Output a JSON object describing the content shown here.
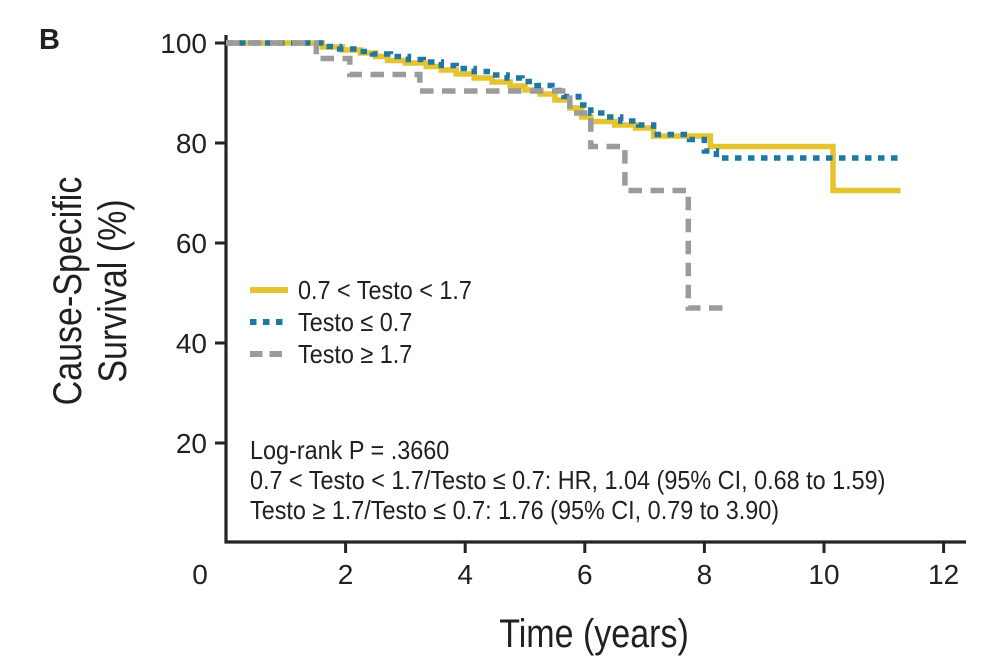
{
  "panel_label": "B",
  "colors": {
    "yellow": "#E6C42F",
    "blue": "#1F78A4",
    "gray": "#9B9B9B",
    "axis": "#262324",
    "text": "#231F20",
    "background": "#FFFFFF"
  },
  "chart_data": {
    "type": "line",
    "subtype": "kaplan-meier-step",
    "title": "",
    "xlabel": "Time (years)",
    "ylabel_lines": [
      "Cause-Specific",
      "Survival (%)"
    ],
    "xlim": [
      0,
      12.4
    ],
    "ylim": [
      0,
      101.6
    ],
    "grid": false,
    "legend_position": "inside-upper-left",
    "xticks": [
      {
        "v": 0,
        "label": "0",
        "tick": false,
        "dx": -26
      },
      {
        "v": 2,
        "label": "2",
        "tick": true,
        "dx": 0
      },
      {
        "v": 4,
        "label": "4",
        "tick": true,
        "dx": 0
      },
      {
        "v": 6,
        "label": "6",
        "tick": true,
        "dx": 0
      },
      {
        "v": 8,
        "label": "8",
        "tick": true,
        "dx": 0
      },
      {
        "v": 10,
        "label": "10",
        "tick": true,
        "dx": 0
      },
      {
        "v": 12,
        "label": "12",
        "tick": true,
        "dx": 0
      }
    ],
    "yticks": [
      20,
      40,
      60,
      80,
      100
    ],
    "series": [
      {
        "id": "testo-mid",
        "name": "0.7 < Testo < 1.7",
        "color_key": "yellow",
        "dash": "solid",
        "points": [
          [
            0,
            100
          ],
          [
            1.61,
            99.2
          ],
          [
            1.95,
            98.6
          ],
          [
            2.25,
            98.0
          ],
          [
            2.5,
            97.3
          ],
          [
            2.7,
            96.5
          ],
          [
            3.0,
            96.0
          ],
          [
            3.35,
            95.3
          ],
          [
            3.6,
            94.6
          ],
          [
            3.85,
            93.8
          ],
          [
            4.15,
            93.0
          ],
          [
            4.45,
            92.2
          ],
          [
            4.75,
            91.4
          ],
          [
            5.0,
            90.6
          ],
          [
            5.25,
            89.8
          ],
          [
            5.5,
            88.6
          ],
          [
            5.75,
            87.0
          ],
          [
            5.95,
            85.2
          ],
          [
            6.1,
            84.3
          ],
          [
            6.5,
            83.6
          ],
          [
            6.85,
            83.0
          ],
          [
            7.15,
            81.4
          ],
          [
            8.1,
            79.3
          ],
          [
            10.15,
            70.5
          ],
          [
            11.28,
            70.5
          ]
        ]
      },
      {
        "id": "testo-low",
        "name": "Testo ≤ 0.7",
        "color_key": "blue",
        "dash": "dotted",
        "points": [
          [
            0,
            100
          ],
          [
            1.63,
            99.3
          ],
          [
            1.9,
            98.8
          ],
          [
            2.2,
            98.3
          ],
          [
            2.45,
            97.8
          ],
          [
            2.75,
            97.3
          ],
          [
            3.05,
            96.7
          ],
          [
            3.3,
            96.2
          ],
          [
            3.6,
            95.5
          ],
          [
            3.85,
            94.9
          ],
          [
            4.15,
            94.3
          ],
          [
            4.45,
            93.6
          ],
          [
            4.7,
            93.0
          ],
          [
            4.95,
            92.3
          ],
          [
            5.2,
            91.5
          ],
          [
            5.45,
            90.5
          ],
          [
            5.65,
            89.3
          ],
          [
            5.9,
            87.6
          ],
          [
            6.1,
            86.0
          ],
          [
            6.35,
            85.2
          ],
          [
            6.6,
            84.4
          ],
          [
            6.9,
            83.6
          ],
          [
            7.15,
            81.7
          ],
          [
            7.75,
            80.7
          ],
          [
            8.0,
            78.4
          ],
          [
            8.2,
            77.0
          ],
          [
            11.3,
            77.0
          ]
        ]
      },
      {
        "id": "testo-high",
        "name": "Testo ≥ 1.7",
        "color_key": "gray",
        "dash": "dashed",
        "points": [
          [
            0,
            100
          ],
          [
            1.51,
            96.9
          ],
          [
            2.07,
            93.7
          ],
          [
            3.24,
            90.4
          ],
          [
            5.75,
            86.0
          ],
          [
            6.1,
            79.3
          ],
          [
            6.67,
            70.5
          ],
          [
            7.73,
            47.0
          ],
          [
            8.4,
            47.0
          ]
        ]
      }
    ],
    "annotations": [
      "Log-rank P = .3660",
      "0.7 < Testo < 1.7/Testo ≤ 0.7: HR, 1.04 (95% CI, 0.68 to 1.59)",
      "Testo ≥ 1.7/Testo ≤ 0.7: 1.76 (95% CI, 0.79 to 3.90)"
    ]
  }
}
